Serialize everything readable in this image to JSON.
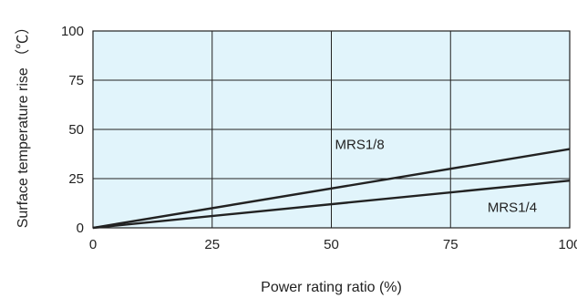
{
  "chart_data": {
    "type": "line",
    "title": "",
    "xlabel": "Power rating ratio (%)",
    "ylabel": "Surface temperature rise （℃）",
    "xlim": [
      0,
      100
    ],
    "ylim": [
      0,
      100
    ],
    "x_ticks": [
      0,
      25,
      50,
      75,
      100
    ],
    "y_ticks": [
      0,
      25,
      50,
      75,
      100
    ],
    "grid": true,
    "plot_background": "#e1f4fb",
    "series": [
      {
        "name": "MRS1/8",
        "x": [
          0,
          100
        ],
        "y": [
          0,
          40
        ],
        "color": "#222222",
        "label_at": [
          50,
          40
        ]
      },
      {
        "name": "MRS1/4",
        "x": [
          0,
          100
        ],
        "y": [
          0,
          24
        ],
        "color": "#222222",
        "label_at": [
          82,
          8
        ]
      }
    ]
  }
}
